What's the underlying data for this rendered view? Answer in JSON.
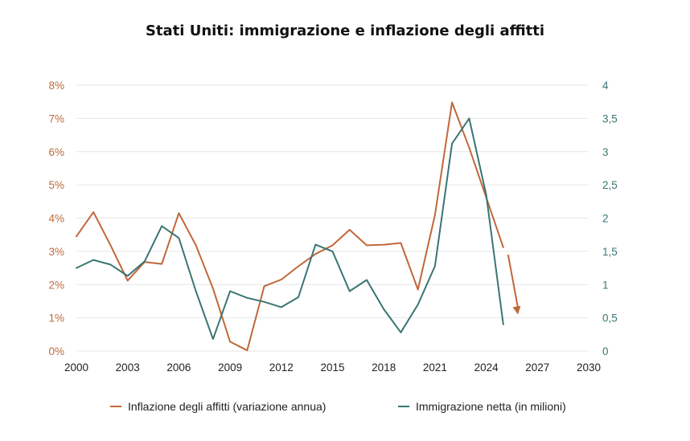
{
  "chart_data": {
    "type": "line",
    "title": "Stati Uniti: immigrazione e inflazione degli affitti",
    "colors": {
      "rent": "#c0683a",
      "immigration": "#3a7574",
      "grid": "#e6e6e6"
    },
    "x_ticks": [
      "2000",
      "2003",
      "2006",
      "2009",
      "2012",
      "2015",
      "2018",
      "2021",
      "2024",
      "2027",
      "2030"
    ],
    "xlim": [
      2000,
      2030
    ],
    "y_left": {
      "ticks": [
        "0%",
        "1%",
        "2%",
        "3%",
        "4%",
        "5%",
        "6%",
        "7%",
        "8%"
      ],
      "ylim": [
        0,
        8
      ],
      "unit": "%"
    },
    "y_right": {
      "ticks": [
        "0",
        "0,5",
        "1",
        "1,5",
        "2",
        "2,5",
        "3",
        "3,5",
        "4"
      ],
      "ylim": [
        0,
        4
      ]
    },
    "grid": true,
    "legend_position": "bottom",
    "series": [
      {
        "name": "Inflazione degli affitti (variazione annua)",
        "axis": "left",
        "color": "#c0683a",
        "x": [
          2000,
          2001,
          2002,
          2003,
          2004,
          2005,
          2006,
          2007,
          2008,
          2009,
          2010,
          2011,
          2012,
          2013,
          2014,
          2015,
          2016,
          2017,
          2018,
          2019,
          2020,
          2021,
          2022,
          2023,
          2024,
          2025
        ],
        "values": [
          3.45,
          4.18,
          3.18,
          2.12,
          2.68,
          2.62,
          4.15,
          3.18,
          1.88,
          0.28,
          0.02,
          1.95,
          2.15,
          2.55,
          2.92,
          3.18,
          3.65,
          3.18,
          3.2,
          3.25,
          1.85,
          4.1,
          7.48,
          6.12,
          4.62,
          3.12
        ],
        "projection": {
          "x": [
            2025,
            2026
          ],
          "values": [
            2.9,
            1.1
          ]
        }
      },
      {
        "name": "Immigrazione netta (in milioni)",
        "axis": "right",
        "color": "#3a7574",
        "x": [
          2000,
          2001,
          2002,
          2003,
          2004,
          2005,
          2006,
          2007,
          2008,
          2009,
          2010,
          2011,
          2012,
          2013,
          2014,
          2015,
          2016,
          2017,
          2018,
          2019,
          2020,
          2021,
          2022,
          2023,
          2024,
          2025
        ],
        "values": [
          1.25,
          1.37,
          1.3,
          1.13,
          1.35,
          1.88,
          1.7,
          0.9,
          0.18,
          0.9,
          0.8,
          0.74,
          0.66,
          0.81,
          1.6,
          1.5,
          0.9,
          1.07,
          0.63,
          0.28,
          0.7,
          1.28,
          3.12,
          3.5,
          2.35,
          0.4
        ]
      }
    ]
  }
}
